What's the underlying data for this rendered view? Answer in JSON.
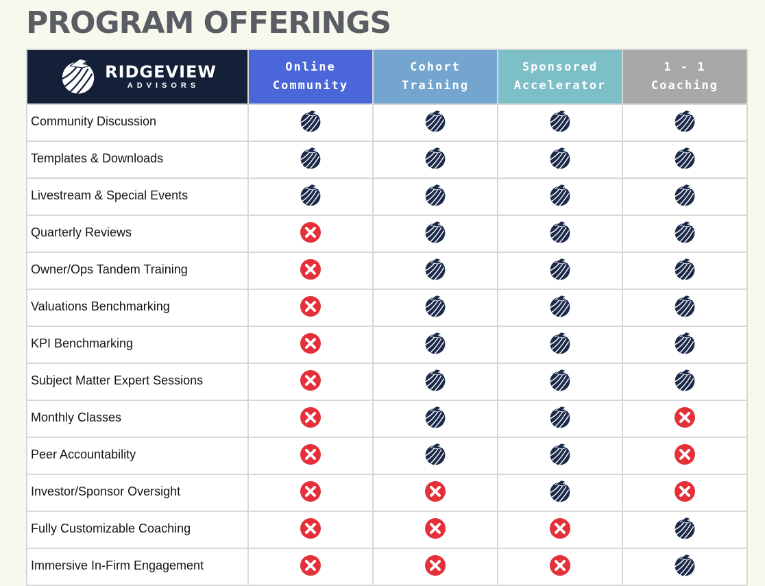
{
  "page": {
    "title": "PROGRAM OFFERINGS"
  },
  "brand": {
    "name": "RIDGEVIEW",
    "subtitle": "ADVISORS"
  },
  "colors": {
    "background": "#f8f9ee",
    "brand_navy": "#132038",
    "included_mark": "#1b2a4a",
    "excluded_mark": "#e5303a",
    "grid_line": "#d6d8d8",
    "title_gray": "#5a5d63"
  },
  "columns": [
    {
      "line1": "Online",
      "line2": "Community",
      "color": "#4a66d9"
    },
    {
      "line1": "Cohort",
      "line2": "Training",
      "color": "#73a5cf"
    },
    {
      "line1": "Sponsored",
      "line2": "Accelerator",
      "color": "#7cbfc6"
    },
    {
      "line1": "1 - 1",
      "line2": "Coaching",
      "color": "#a8a8a8"
    }
  ],
  "legend_icons": {
    "included": "ridgeview-logo-icon",
    "excluded": "x-circle-icon"
  },
  "rows": [
    {
      "label": "Community Discussion",
      "values": [
        true,
        true,
        true,
        true
      ]
    },
    {
      "label": "Templates & Downloads",
      "values": [
        true,
        true,
        true,
        true
      ]
    },
    {
      "label": "Livestream & Special Events",
      "values": [
        true,
        true,
        true,
        true
      ]
    },
    {
      "label": "Quarterly Reviews",
      "values": [
        false,
        true,
        true,
        true
      ]
    },
    {
      "label": "Owner/Ops Tandem Training",
      "values": [
        false,
        true,
        true,
        true
      ]
    },
    {
      "label": "Valuations Benchmarking",
      "values": [
        false,
        true,
        true,
        true
      ]
    },
    {
      "label": "KPI Benchmarking",
      "values": [
        false,
        true,
        true,
        true
      ]
    },
    {
      "label": "Subject Matter Expert Sessions",
      "values": [
        false,
        true,
        true,
        true
      ]
    },
    {
      "label": "Monthly Classes",
      "values": [
        false,
        true,
        true,
        false
      ]
    },
    {
      "label": "Peer Accountability",
      "values": [
        false,
        true,
        true,
        false
      ]
    },
    {
      "label": "Investor/Sponsor Oversight",
      "values": [
        false,
        false,
        true,
        false
      ]
    },
    {
      "label": "Fully Customizable Coaching",
      "values": [
        false,
        false,
        false,
        true
      ]
    },
    {
      "label": "Immersive In-Firm Engagement",
      "values": [
        false,
        false,
        false,
        true
      ]
    }
  ]
}
